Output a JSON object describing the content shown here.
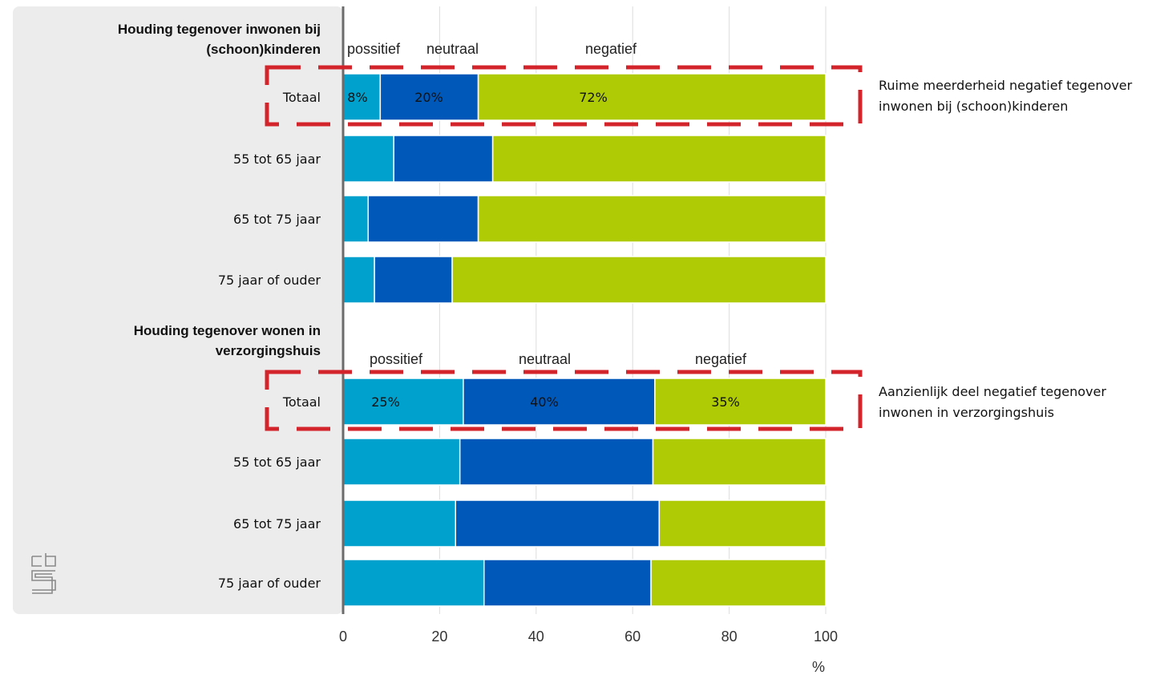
{
  "chart_data": {
    "type": "bar",
    "orientation": "horizontal",
    "stacked": true,
    "xlim": [
      0,
      100
    ],
    "xticks": [
      "0",
      "20",
      "40",
      "60",
      "80",
      "100"
    ],
    "xlabel": "%",
    "grid": true,
    "colors": {
      "possitief": "#00a1cd",
      "neutraal": "#0058b8",
      "negatief": "#afcb05"
    },
    "groups": [
      {
        "title_line1": "Houding tegenover inwonen bij",
        "title_line2": "(schoon)kinderen",
        "legend": [
          "possitief",
          "neutraal",
          "negatief"
        ],
        "categories": [
          "Totaal",
          "55 tot 65 jaar",
          "65 tot 75 jaar",
          "75 jaar of ouder"
        ],
        "series": [
          {
            "name": "possitief",
            "values": [
              7.7,
              10.5,
              5.2,
              6.5
            ]
          },
          {
            "name": "neutraal",
            "values": [
              20.3,
              20.5,
              22.8,
              16.1
            ]
          },
          {
            "name": "negatief",
            "values": [
              72.0,
              69.0,
              72.0,
              77.4
            ]
          }
        ],
        "data_labels": [
          "8%",
          "20%",
          "72%"
        ],
        "annotation_line1": "Ruime meerderheid negatief tegenover",
        "annotation_line2": "inwonen bij (schoon)kinderen"
      },
      {
        "title_line1": "Houding tegenover wonen in",
        "title_line2": "verzorgingshuis",
        "legend": [
          "possitief",
          "neutraal",
          "negatief"
        ],
        "categories": [
          "Totaal",
          "55 tot 65 jaar",
          "65 tot 75 jaar",
          "75 jaar of ouder"
        ],
        "series": [
          {
            "name": "possitief",
            "values": [
              24.9,
              24.2,
              23.3,
              29.2
            ]
          },
          {
            "name": "neutraal",
            "values": [
              39.7,
              40.0,
              42.2,
              34.6
            ]
          },
          {
            "name": "negatief",
            "values": [
              35.4,
              35.8,
              34.5,
              36.2
            ]
          }
        ],
        "data_labels": [
          "25%",
          "40%",
          "35%"
        ],
        "annotation_line1": "Aanzienlijk deel negatief tegenover",
        "annotation_line2": "inwonen in verzorgingshuis"
      }
    ]
  }
}
